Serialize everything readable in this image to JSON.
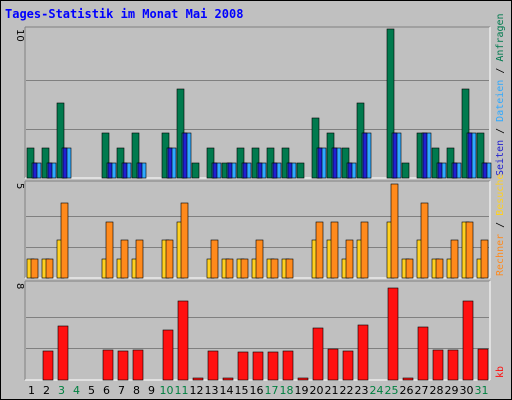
{
  "colors": {
    "anfragen": "#007a4e",
    "dateien": "#2fa9ff",
    "seiten": "#2020d0",
    "besuche": "#ffd020",
    "rechner": "#ff8a1c",
    "kb": "#ff1010",
    "title": "#0000ff",
    "weekend": "#008040",
    "weekday": "#000000"
  },
  "chart_data": {
    "type": "bar",
    "title": "Tages-Statistik im Monat Mai 2008",
    "days": [
      {
        "label": "1",
        "weekend": false
      },
      {
        "label": "2",
        "weekend": false
      },
      {
        "label": "3",
        "weekend": true
      },
      {
        "label": "4",
        "weekend": true
      },
      {
        "label": "5",
        "weekend": false
      },
      {
        "label": "6",
        "weekend": false
      },
      {
        "label": "7",
        "weekend": false
      },
      {
        "label": "8",
        "weekend": false
      },
      {
        "label": "9",
        "weekend": false
      },
      {
        "label": "10",
        "weekend": true
      },
      {
        "label": "11",
        "weekend": true
      },
      {
        "label": "12",
        "weekend": false
      },
      {
        "label": "13",
        "weekend": false
      },
      {
        "label": "14",
        "weekend": false
      },
      {
        "label": "15",
        "weekend": false
      },
      {
        "label": "16",
        "weekend": false
      },
      {
        "label": "17",
        "weekend": true
      },
      {
        "label": "18",
        "weekend": true
      },
      {
        "label": "19",
        "weekend": false
      },
      {
        "label": "20",
        "weekend": false
      },
      {
        "label": "21",
        "weekend": false
      },
      {
        "label": "22",
        "weekend": false
      },
      {
        "label": "23",
        "weekend": false
      },
      {
        "label": "24",
        "weekend": true
      },
      {
        "label": "25",
        "weekend": true
      },
      {
        "label": "26",
        "weekend": false
      },
      {
        "label": "27",
        "weekend": false
      },
      {
        "label": "28",
        "weekend": false
      },
      {
        "label": "29",
        "weekend": false
      },
      {
        "label": "30",
        "weekend": false
      },
      {
        "label": "31",
        "weekend": true
      }
    ],
    "panels": [
      {
        "ymax": 10,
        "ymax_label": "10",
        "side_label": {
          "parts": [
            {
              "text": "Seiten",
              "color": "#2020d0"
            },
            {
              "text": " / ",
              "color": "#000000"
            },
            {
              "text": "Dateien",
              "color": "#2fa9ff"
            },
            {
              "text": " / ",
              "color": "#000000"
            },
            {
              "text": "Anfragen",
              "color": "#007a4e"
            }
          ]
        },
        "series": [
          {
            "key": "anfragen",
            "values": [
              2,
              2,
              5,
              0,
              0,
              3,
              2,
              3,
              0,
              3,
              6,
              1,
              2,
              1,
              2,
              2,
              2,
              2,
              1,
              4,
              3,
              2,
              5,
              0,
              10,
              1,
              3,
              2,
              2,
              6,
              3
            ]
          },
          {
            "key": "dateien",
            "values": [
              1,
              1,
              2,
              0,
              0,
              1,
              1,
              1,
              0,
              2,
              3,
              0,
              1,
              1,
              1,
              1,
              1,
              1,
              0,
              2,
              2,
              1,
              3,
              0,
              3,
              0,
              3,
              1,
              1,
              3,
              1
            ]
          },
          {
            "key": "seiten",
            "values": [
              1,
              1,
              2,
              0,
              0,
              1,
              1,
              1,
              0,
              2,
              3,
              0,
              1,
              1,
              1,
              1,
              1,
              1,
              0,
              2,
              2,
              1,
              3,
              0,
              3,
              0,
              3,
              1,
              1,
              3,
              1
            ]
          }
        ]
      },
      {
        "ymax": 5,
        "ymax_label": "5",
        "side_label": {
          "parts": [
            {
              "text": "Rechner",
              "color": "#ff8a1c"
            },
            {
              "text": " / ",
              "color": "#000000"
            },
            {
              "text": "Besuche",
              "color": "#ffd020"
            }
          ]
        },
        "series": [
          {
            "key": "besuche",
            "values": [
              1,
              1,
              2,
              0,
              0,
              1,
              1,
              1,
              0,
              2,
              3,
              0,
              1,
              1,
              1,
              1,
              1,
              1,
              0,
              2,
              2,
              1,
              2,
              0,
              3,
              1,
              2,
              1,
              1,
              3,
              1
            ]
          },
          {
            "key": "rechner",
            "values": [
              1,
              1,
              4,
              0,
              0,
              3,
              2,
              2,
              0,
              2,
              4,
              0,
              2,
              1,
              1,
              2,
              1,
              1,
              0,
              3,
              3,
              2,
              3,
              0,
              5,
              1,
              4,
              1,
              2,
              3,
              2
            ]
          }
        ]
      },
      {
        "ymax": 8,
        "ymax_label": "8",
        "side_label": {
          "parts": [
            {
              "text": "kb",
              "color": "#ff1010"
            }
          ]
        },
        "series": [
          {
            "key": "kb",
            "values": [
              0,
              2.4,
              4.5,
              0,
              0,
              2.5,
              2.4,
              2.5,
              0,
              4.2,
              6.6,
              0.2,
              2.4,
              0.2,
              2.3,
              2.3,
              2.3,
              2.4,
              0.2,
              4.3,
              2.6,
              2.4,
              4.6,
              0,
              7.7,
              0.2,
              4.4,
              2.5,
              2.5,
              6.6,
              2.6
            ]
          }
        ]
      }
    ]
  }
}
